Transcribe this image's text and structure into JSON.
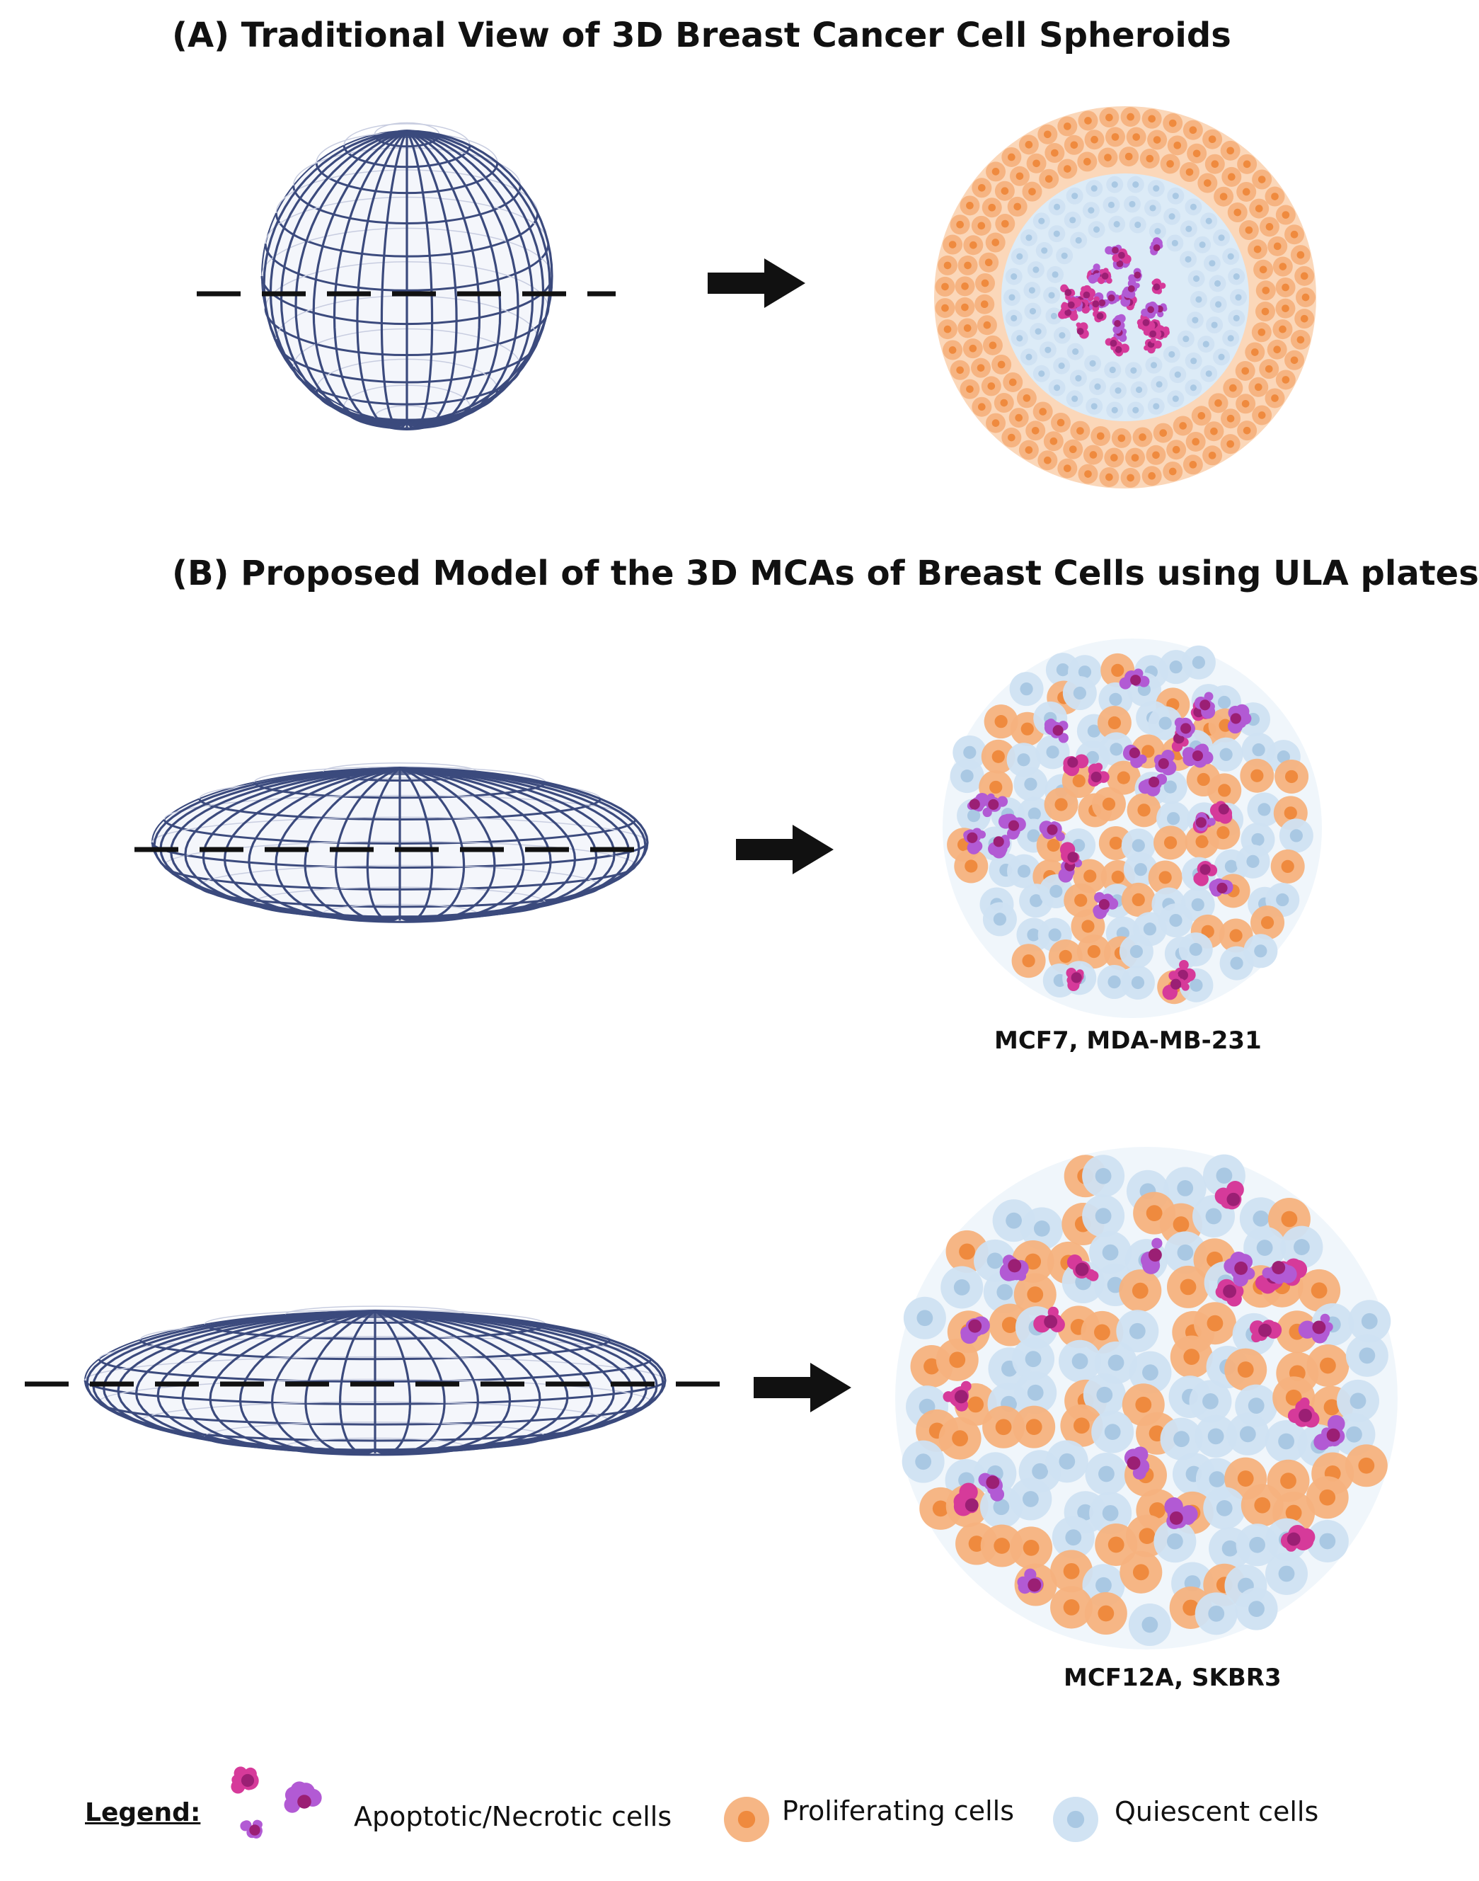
{
  "panel_a": {
    "title": "(A) Traditional View of 3D Breast Cancer Cell Spheroids"
  },
  "panel_b": {
    "title": "(B) Proposed Model of the 3D MCAs of Breast Cells using ULA plates",
    "models": [
      {
        "caption": "MCF7, MDA-MB-231"
      },
      {
        "caption": "MCF12A, SKBR3"
      }
    ]
  },
  "legend": {
    "title": "Legend:",
    "items": [
      {
        "label": "Apoptotic/Necrotic cells",
        "color": "#d63a9a"
      },
      {
        "label": "Proliferating cells",
        "color": "#f6b27e"
      },
      {
        "label": "Quiescent cells",
        "color": "#c9dff0"
      }
    ]
  },
  "colors": {
    "grid_line": "#3b4a7d",
    "proliferating": "#f6b27e",
    "proliferating_nucleus": "#ef8a3e",
    "quiescent": "#cfe2f2",
    "quiescent_nucleus": "#a9c8e3",
    "apoptotic": "#d63a9a",
    "necrotic": "#b25ad4",
    "arrow": "#111111"
  },
  "icons": [
    "globe-wireframe",
    "dashed-cut-line",
    "right-arrow",
    "cell-cross-section"
  ]
}
